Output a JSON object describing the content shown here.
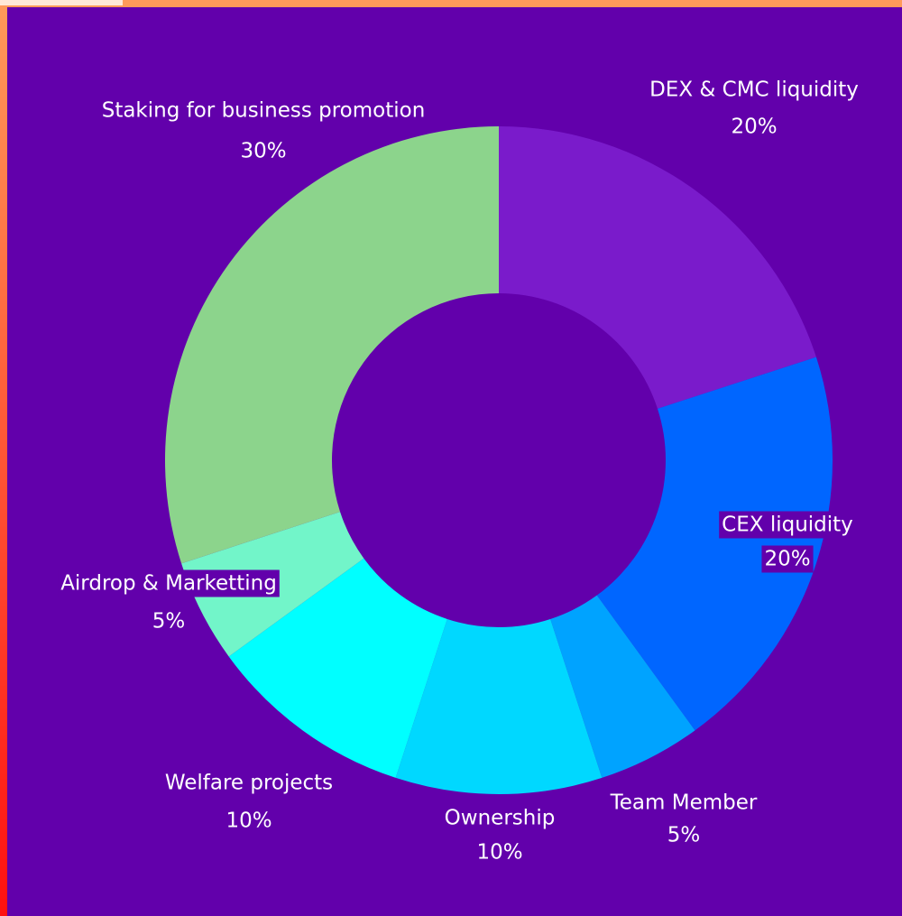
{
  "chart_data": {
    "type": "donut",
    "categories": [
      "DEX & CMC liquidity",
      "CEX liquidity",
      "Team Member",
      "Ownership",
      "Welfare projects",
      "Airdrop & Marketting",
      "Staking for business promotion"
    ],
    "values": [
      20,
      20,
      5,
      10,
      10,
      5,
      30
    ],
    "value_labels": [
      "20%",
      "20%",
      "5%",
      "10%",
      "10%",
      "5%",
      "30%"
    ],
    "colors": [
      "#7a1bcb",
      "#0066ff",
      "#00a3ff",
      "#00d8ff",
      "#00ffff",
      "#72f5c9",
      "#8cd48c"
    ]
  }
}
